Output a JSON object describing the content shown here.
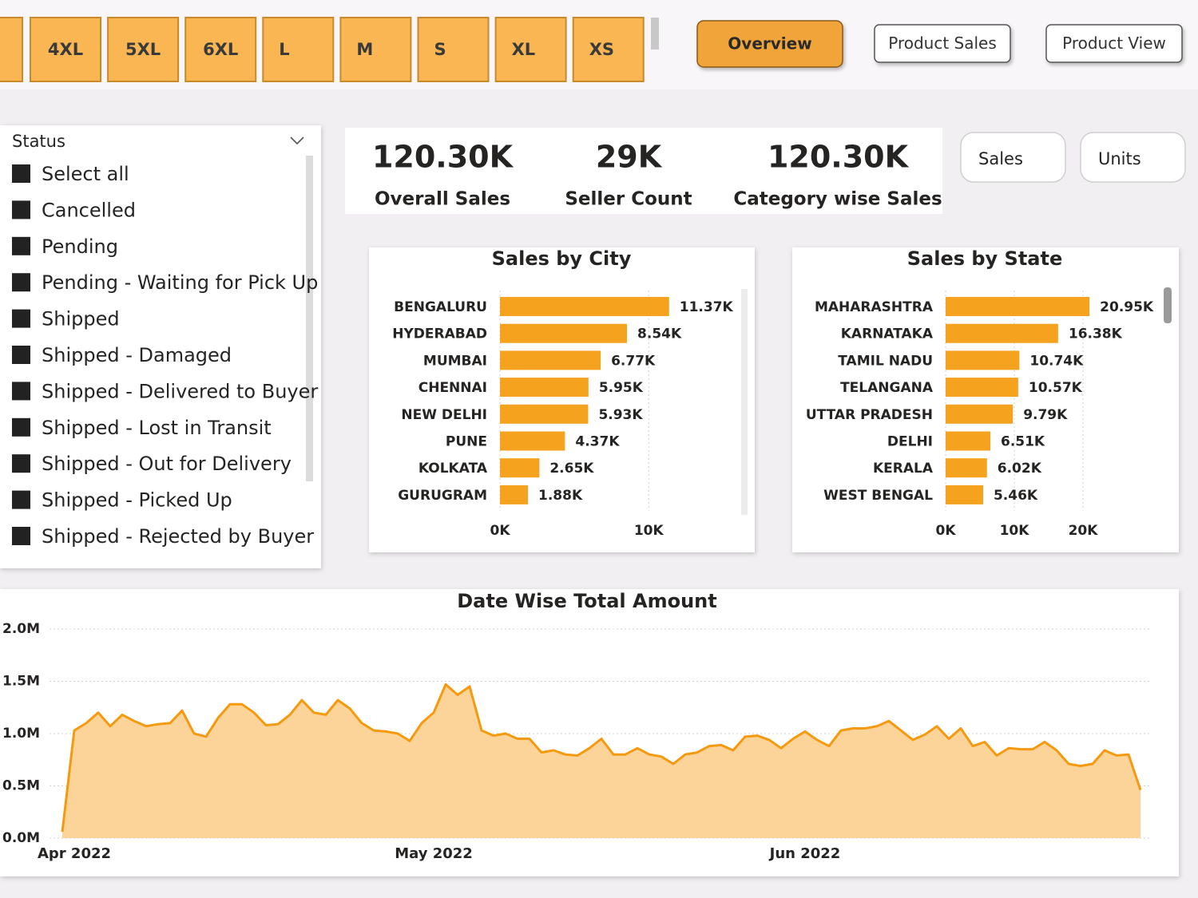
{
  "size_buttons": [
    "4XL",
    "5XL",
    "6XL",
    "L",
    "M",
    "S",
    "XL",
    "XS"
  ],
  "nav": [
    "Overview",
    "Product Sales",
    "Product View"
  ],
  "slicer": {
    "title": "Status",
    "items": [
      "Select all",
      "Cancelled",
      "Pending",
      "Pending - Waiting for Pick Up",
      "Shipped",
      "Shipped - Damaged",
      "Shipped - Delivered to Buyer",
      "Shipped - Lost in Transit",
      "Shipped - Out for Delivery",
      "Shipped - Picked Up",
      "Shipped - Rejected by Buyer"
    ]
  },
  "kpis": [
    {
      "value": "120.30K",
      "label": "Overall Sales"
    },
    {
      "value": "29K",
      "label": "Seller Count"
    },
    {
      "value": "120.30K",
      "label": "Category wise Sales"
    }
  ],
  "toggles": [
    "Sales",
    "Units"
  ],
  "chart_data": [
    {
      "type": "hbar",
      "title": "Sales by City",
      "color": "#f5a21f",
      "grid": true,
      "categories": [
        "BENGALURU",
        "HYDERABAD",
        "MUMBAI",
        "CHENNAI",
        "NEW DELHI",
        "PUNE",
        "KOLKATA",
        "GURUGRAM"
      ],
      "values": [
        11370,
        8540,
        6770,
        5950,
        5930,
        4370,
        2650,
        1880
      ],
      "value_labels": [
        "11.37K",
        "8.54K",
        "6.77K",
        "5.95K",
        "5.93K",
        "4.37K",
        "2.65K",
        "1.88K"
      ],
      "xlim": [
        0,
        16000
      ],
      "xticks": [
        {
          "value": 0,
          "label": "0K"
        },
        {
          "value": 10000,
          "label": "10K"
        }
      ]
    },
    {
      "type": "hbar",
      "title": "Sales by State",
      "color": "#f5a21f",
      "grid": true,
      "categories": [
        "MAHARASHTRA",
        "KARNATAKA",
        "TAMIL NADU",
        "TELANGANA",
        "UTTAR PRADESH",
        "DELHI",
        "KERALA",
        "WEST BENGAL"
      ],
      "values": [
        20950,
        16380,
        10740,
        10570,
        9790,
        6510,
        6020,
        5460
      ],
      "value_labels": [
        "20.95K",
        "16.38K",
        "10.74K",
        "10.57K",
        "9.79K",
        "6.51K",
        "6.02K",
        "5.46K"
      ],
      "xlim": [
        0,
        30000
      ],
      "xticks": [
        {
          "value": 0,
          "label": "0K"
        },
        {
          "value": 10000,
          "label": "10K"
        },
        {
          "value": 20000,
          "label": "20K"
        }
      ]
    },
    {
      "type": "area",
      "title": "Date Wise Total Amount",
      "color": "#f59a0f",
      "fill_color": "#fcd49a",
      "grid": true,
      "categories": [
        null,
        "Apr 2022",
        null,
        null,
        null,
        null,
        null,
        null,
        null,
        null,
        null,
        null,
        null,
        null,
        null,
        null,
        null,
        null,
        null,
        null,
        null,
        null,
        null,
        null,
        null,
        null,
        null,
        null,
        null,
        null,
        null,
        "May 2022",
        null,
        null,
        null,
        null,
        null,
        null,
        null,
        null,
        null,
        null,
        null,
        null,
        null,
        null,
        null,
        null,
        null,
        null,
        null,
        null,
        null,
        null,
        null,
        null,
        null,
        null,
        null,
        null,
        null,
        null,
        "Jun 2022",
        null,
        null,
        null,
        null,
        null,
        null,
        null,
        null,
        null,
        null,
        null,
        null,
        null,
        null,
        null,
        null,
        null,
        null,
        null,
        null,
        null,
        null,
        null,
        null,
        null,
        null,
        null,
        null
      ],
      "values": [
        60000,
        1030000,
        1100000,
        1200000,
        1070000,
        1180000,
        1120000,
        1070000,
        1090000,
        1100000,
        1220000,
        1000000,
        970000,
        1150000,
        1280000,
        1280000,
        1200000,
        1080000,
        1090000,
        1180000,
        1320000,
        1200000,
        1180000,
        1320000,
        1240000,
        1100000,
        1030000,
        1020000,
        1000000,
        930000,
        1100000,
        1200000,
        1470000,
        1370000,
        1450000,
        1030000,
        980000,
        1000000,
        950000,
        950000,
        820000,
        840000,
        800000,
        790000,
        860000,
        950000,
        800000,
        800000,
        860000,
        800000,
        780000,
        710000,
        800000,
        820000,
        880000,
        890000,
        840000,
        970000,
        980000,
        940000,
        860000,
        950000,
        1020000,
        940000,
        880000,
        1030000,
        1050000,
        1050000,
        1070000,
        1120000,
        1030000,
        940000,
        990000,
        1070000,
        950000,
        1050000,
        880000,
        920000,
        790000,
        860000,
        850000,
        850000,
        920000,
        840000,
        710000,
        690000,
        710000,
        840000,
        790000,
        800000,
        460000
      ],
      "ylim": [
        0,
        2000000
      ],
      "yticks": [
        {
          "value": 0,
          "label": "0.0M"
        },
        {
          "value": 500000,
          "label": "0.5M"
        },
        {
          "value": 1000000,
          "label": "1.0M"
        },
        {
          "value": 1500000,
          "label": "1.5M"
        },
        {
          "value": 2000000,
          "label": "2.0M"
        }
      ]
    }
  ]
}
